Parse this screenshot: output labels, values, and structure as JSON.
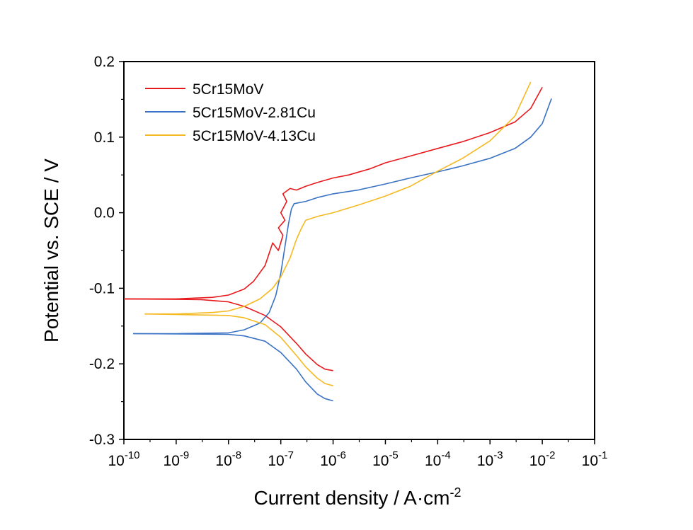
{
  "chart_data": {
    "type": "line",
    "xlabel": "Current density / A·cm",
    "xlabel_sup": "-2",
    "ylabel": "Potential vs. SCE / V",
    "x_scale": "log",
    "xlim": [
      1e-10,
      0.1
    ],
    "ylim": [
      -0.3,
      0.2
    ],
    "x_ticks": [
      {
        "value": 1e-10,
        "base": "10",
        "exp": "-10"
      },
      {
        "value": 1e-09,
        "base": "10",
        "exp": "-9"
      },
      {
        "value": 1e-08,
        "base": "10",
        "exp": "-8"
      },
      {
        "value": 1e-07,
        "base": "10",
        "exp": "-7"
      },
      {
        "value": 1e-06,
        "base": "10",
        "exp": "-6"
      },
      {
        "value": 1e-05,
        "base": "10",
        "exp": "-5"
      },
      {
        "value": 0.0001,
        "base": "10",
        "exp": "-4"
      },
      {
        "value": 0.001,
        "base": "10",
        "exp": "-3"
      },
      {
        "value": 0.01,
        "base": "10",
        "exp": "-2"
      },
      {
        "value": 0.1,
        "base": "10",
        "exp": "-1"
      }
    ],
    "y_ticks": [
      {
        "value": 0.2,
        "label": "0.2"
      },
      {
        "value": 0.1,
        "label": "0.1"
      },
      {
        "value": 0.0,
        "label": "0.0"
      },
      {
        "value": -0.1,
        "label": "-0.1"
      },
      {
        "value": -0.2,
        "label": "-0.2"
      },
      {
        "value": -0.3,
        "label": "-0.3"
      }
    ],
    "grid": false,
    "legend_position": "top-left",
    "series": [
      {
        "name": "5Cr15MoV",
        "color": "#e8191c",
        "cathodic": [
          [
            1e-06,
            -0.209
          ],
          [
            7e-07,
            -0.207
          ],
          [
            5e-07,
            -0.201
          ],
          [
            3e-07,
            -0.187
          ],
          [
            2e-07,
            -0.173
          ],
          [
            1e-07,
            -0.151
          ],
          [
            5e-08,
            -0.136
          ],
          [
            2e-08,
            -0.124
          ],
          [
            1e-08,
            -0.118
          ],
          [
            3e-09,
            -0.115
          ],
          [
            1e-10,
            -0.114
          ]
        ],
        "anodic": [
          [
            1e-10,
            -0.114
          ],
          [
            1e-09,
            -0.114
          ],
          [
            5e-09,
            -0.112
          ],
          [
            1e-08,
            -0.109
          ],
          [
            2e-08,
            -0.101
          ],
          [
            3e-08,
            -0.091
          ],
          [
            5e-08,
            -0.07
          ],
          [
            7e-08,
            -0.04
          ],
          [
            9e-08,
            -0.05
          ],
          [
            1.1e-07,
            -0.03
          ],
          [
            9e-08,
            -0.02
          ],
          [
            1.2e-07,
            -0.01
          ],
          [
            1e-07,
            0.0
          ],
          [
            1.3e-07,
            0.015
          ],
          [
            1.1e-07,
            0.025
          ],
          [
            1.5e-07,
            0.032
          ],
          [
            2e-07,
            0.03
          ],
          [
            3e-07,
            0.035
          ],
          [
            5e-07,
            0.04
          ],
          [
            1e-06,
            0.046
          ],
          [
            2e-06,
            0.05
          ],
          [
            5e-06,
            0.058
          ],
          [
            1e-05,
            0.066
          ],
          [
            3e-05,
            0.075
          ],
          [
            0.0001,
            0.085
          ],
          [
            0.0003,
            0.094
          ],
          [
            0.001,
            0.106
          ],
          [
            0.003,
            0.12
          ],
          [
            0.006,
            0.138
          ],
          [
            0.01,
            0.166
          ]
        ]
      },
      {
        "name": "5Cr15MoV-2.81Cu",
        "color": "#3a72c4",
        "cathodic": [
          [
            1e-06,
            -0.249
          ],
          [
            7e-07,
            -0.246
          ],
          [
            5e-07,
            -0.24
          ],
          [
            3e-07,
            -0.224
          ],
          [
            2e-07,
            -0.207
          ],
          [
            1e-07,
            -0.185
          ],
          [
            5e-08,
            -0.17
          ],
          [
            2e-08,
            -0.163
          ],
          [
            1e-08,
            -0.161
          ],
          [
            1.5e-10,
            -0.16
          ]
        ],
        "anodic": [
          [
            1.5e-10,
            -0.16
          ],
          [
            1e-09,
            -0.16
          ],
          [
            1e-08,
            -0.159
          ],
          [
            2e-08,
            -0.155
          ],
          [
            4e-08,
            -0.146
          ],
          [
            6e-08,
            -0.132
          ],
          [
            8e-08,
            -0.11
          ],
          [
            1e-07,
            -0.08
          ],
          [
            1.2e-07,
            -0.045
          ],
          [
            1.4e-07,
            -0.015
          ],
          [
            1.6e-07,
            0.005
          ],
          [
            1.8e-07,
            0.012
          ],
          [
            3e-07,
            0.015
          ],
          [
            5e-07,
            0.02
          ],
          [
            1e-06,
            0.025
          ],
          [
            3e-06,
            0.03
          ],
          [
            1e-05,
            0.038
          ],
          [
            3e-05,
            0.046
          ],
          [
            0.0001,
            0.054
          ],
          [
            0.0003,
            0.062
          ],
          [
            0.001,
            0.072
          ],
          [
            0.003,
            0.085
          ],
          [
            0.006,
            0.1
          ],
          [
            0.01,
            0.118
          ],
          [
            0.015,
            0.151
          ]
        ]
      },
      {
        "name": "5Cr15MoV-4.13Cu",
        "color": "#f5b921",
        "cathodic": [
          [
            1e-06,
            -0.229
          ],
          [
            7e-07,
            -0.226
          ],
          [
            5e-07,
            -0.219
          ],
          [
            3e-07,
            -0.204
          ],
          [
            2e-07,
            -0.189
          ],
          [
            1e-07,
            -0.165
          ],
          [
            5e-08,
            -0.148
          ],
          [
            2e-08,
            -0.139
          ],
          [
            1e-08,
            -0.136
          ],
          [
            2.5e-10,
            -0.134
          ]
        ],
        "anodic": [
          [
            2.5e-10,
            -0.134
          ],
          [
            1e-09,
            -0.134
          ],
          [
            5e-09,
            -0.132
          ],
          [
            1e-08,
            -0.13
          ],
          [
            2e-08,
            -0.124
          ],
          [
            4e-08,
            -0.114
          ],
          [
            7e-08,
            -0.1
          ],
          [
            1e-07,
            -0.085
          ],
          [
            1.5e-07,
            -0.06
          ],
          [
            2e-07,
            -0.035
          ],
          [
            2.5e-07,
            -0.02
          ],
          [
            3e-07,
            -0.01
          ],
          [
            5e-07,
            -0.005
          ],
          [
            1e-06,
            0.0
          ],
          [
            3e-06,
            0.01
          ],
          [
            1e-05,
            0.022
          ],
          [
            3e-05,
            0.035
          ],
          [
            0.0001,
            0.055
          ],
          [
            0.0003,
            0.072
          ],
          [
            0.001,
            0.095
          ],
          [
            0.003,
            0.128
          ],
          [
            0.006,
            0.173
          ]
        ]
      }
    ]
  }
}
